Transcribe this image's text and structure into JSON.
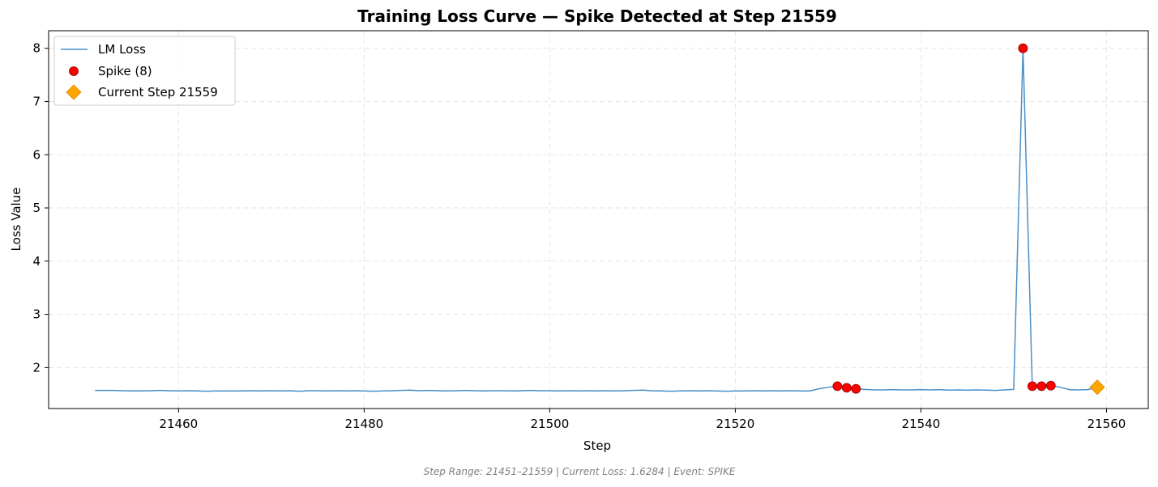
{
  "chart_data": {
    "type": "line",
    "title": "Training Loss Curve — Spike Detected at Step 21559",
    "xlabel": "Step",
    "ylabel": "Loss Value",
    "xlim": [
      21446,
      21564.5
    ],
    "ylim": [
      1.23,
      8.33
    ],
    "xticks": [
      21460,
      21480,
      21500,
      21520,
      21540,
      21560
    ],
    "yticks": [
      2,
      3,
      4,
      5,
      6,
      7,
      8
    ],
    "grid": true,
    "legend_position": "upper-left",
    "series": [
      {
        "name": "LM Loss",
        "color": "#4a90c9",
        "x": [
          21451,
          21452,
          21453,
          21454,
          21455,
          21456,
          21457,
          21458,
          21459,
          21460,
          21461,
          21462,
          21463,
          21464,
          21465,
          21466,
          21467,
          21468,
          21469,
          21470,
          21471,
          21472,
          21473,
          21474,
          21475,
          21476,
          21477,
          21478,
          21479,
          21480,
          21481,
          21482,
          21483,
          21484,
          21485,
          21486,
          21487,
          21488,
          21489,
          21490,
          21491,
          21492,
          21493,
          21494,
          21495,
          21496,
          21497,
          21498,
          21499,
          21500,
          21501,
          21502,
          21503,
          21504,
          21505,
          21506,
          21507,
          21508,
          21509,
          21510,
          21511,
          21512,
          21513,
          21514,
          21515,
          21516,
          21517,
          21518,
          21519,
          21520,
          21521,
          21522,
          21523,
          21524,
          21525,
          21526,
          21527,
          21528,
          21529,
          21530,
          21531,
          21532,
          21533,
          21534,
          21535,
          21536,
          21537,
          21538,
          21539,
          21540,
          21541,
          21542,
          21543,
          21544,
          21545,
          21546,
          21547,
          21548,
          21549,
          21550,
          21551,
          21552,
          21553,
          21554,
          21555,
          21556,
          21557,
          21558,
          21559
        ],
        "y": [
          1.57,
          1.57,
          1.57,
          1.565,
          1.56,
          1.56,
          1.565,
          1.57,
          1.565,
          1.56,
          1.565,
          1.56,
          1.555,
          1.56,
          1.56,
          1.56,
          1.56,
          1.565,
          1.56,
          1.565,
          1.56,
          1.565,
          1.555,
          1.565,
          1.565,
          1.56,
          1.565,
          1.56,
          1.565,
          1.56,
          1.555,
          1.56,
          1.565,
          1.57,
          1.575,
          1.565,
          1.57,
          1.565,
          1.56,
          1.565,
          1.57,
          1.565,
          1.56,
          1.565,
          1.565,
          1.56,
          1.565,
          1.57,
          1.565,
          1.565,
          1.56,
          1.565,
          1.56,
          1.565,
          1.56,
          1.565,
          1.56,
          1.565,
          1.57,
          1.575,
          1.565,
          1.56,
          1.555,
          1.56,
          1.565,
          1.56,
          1.565,
          1.56,
          1.555,
          1.56,
          1.56,
          1.565,
          1.56,
          1.565,
          1.56,
          1.565,
          1.56,
          1.56,
          1.6,
          1.63,
          1.65,
          1.62,
          1.6,
          1.59,
          1.58,
          1.58,
          1.585,
          1.58,
          1.58,
          1.585,
          1.58,
          1.585,
          1.575,
          1.58,
          1.575,
          1.58,
          1.575,
          1.57,
          1.58,
          1.59,
          8.0,
          1.65,
          1.65,
          1.66,
          1.63,
          1.585,
          1.58,
          1.585,
          1.63
        ]
      },
      {
        "name": "Spike (8)",
        "color": "#ff0000",
        "x": [
          21531,
          21532,
          21533,
          21551,
          21552,
          21553,
          21554
        ],
        "y": [
          1.65,
          1.62,
          1.6,
          8.0,
          1.65,
          1.65,
          1.66
        ]
      },
      {
        "name": "Current Step 21559",
        "color": "#ffa500",
        "x": [
          21559
        ],
        "y": [
          1.63
        ]
      }
    ]
  },
  "footer": "Step Range: 21451–21559 | Current Loss: 1.6284 | Event: SPIKE"
}
